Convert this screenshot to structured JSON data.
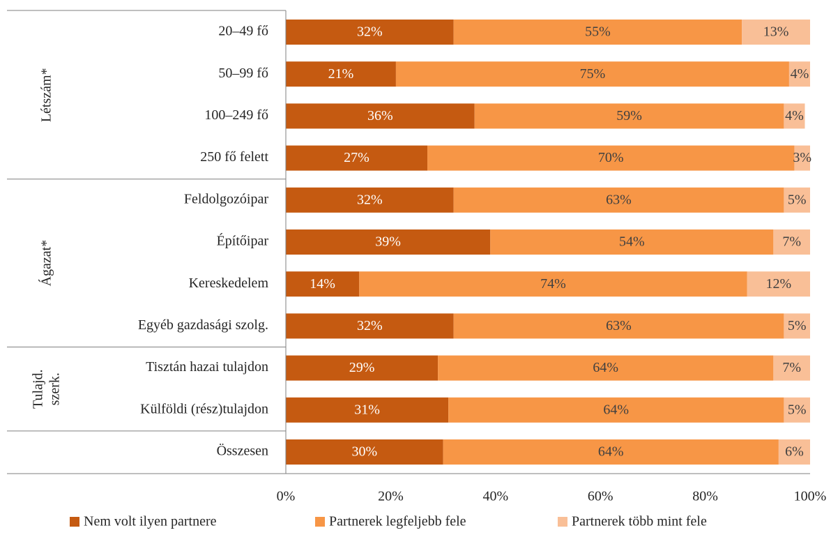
{
  "chart_data": {
    "type": "stacked-barh",
    "groups": [
      {
        "label": [
          "Létszám*"
        ],
        "categories": [
          "20–49 fő",
          "50–99 fő",
          "100–249 fő",
          "250 fő felett"
        ]
      },
      {
        "label": [
          "Ágazat*"
        ],
        "categories": [
          "Feldolgozóipar",
          "Építőipar",
          "Kereskedelem",
          "Egyéb gazdasági szolg."
        ]
      },
      {
        "label": [
          "Tulajd.",
          "szerk."
        ],
        "categories": [
          "Tisztán hazai tulajdon",
          "Külföldi (rész)tulajdon"
        ]
      },
      {
        "categories": [
          "Összesen"
        ]
      }
    ],
    "series": [
      {
        "name": "Nem volt ilyen partnere",
        "color": "#c55a11",
        "label_color": "#ffffff",
        "values": [
          32,
          21,
          36,
          27,
          32,
          39,
          14,
          32,
          29,
          31,
          30
        ],
        "value_labels": [
          "32%",
          "21%",
          "36%",
          "27%",
          "32%",
          "39%",
          "14%",
          "32%",
          "29%",
          "31%",
          "30%"
        ]
      },
      {
        "name": "Partnerek legfeljebb fele",
        "color": "#f79646",
        "label_color": "#404040",
        "values": [
          55,
          75,
          59,
          70,
          63,
          54,
          74,
          63,
          64,
          64,
          64
        ],
        "value_labels": [
          "55%",
          "75%",
          "59%",
          "70%",
          "63%",
          "54%",
          "74%",
          "63%",
          "64%",
          "64%",
          "64%"
        ]
      },
      {
        "name": "Partnerek több mint fele",
        "color": "#f9bf97",
        "label_color": "#404040",
        "values": [
          13,
          4,
          4,
          3,
          5,
          7,
          12,
          5,
          7,
          5,
          6
        ],
        "value_labels": [
          "13%",
          "4%",
          "4%",
          "3%",
          "5%",
          "7%",
          "12%",
          "5%",
          "7%",
          "5%",
          "6%"
        ]
      }
    ],
    "xlim": [
      0,
      100
    ],
    "xticks": [
      {
        "value": 0,
        "label": "0%"
      },
      {
        "value": 20,
        "label": "20%"
      },
      {
        "value": 40,
        "label": "40%"
      },
      {
        "value": 60,
        "label": "60%"
      },
      {
        "value": 80,
        "label": "80%"
      },
      {
        "value": 100,
        "label": "100%"
      }
    ],
    "legend": "bottom"
  }
}
